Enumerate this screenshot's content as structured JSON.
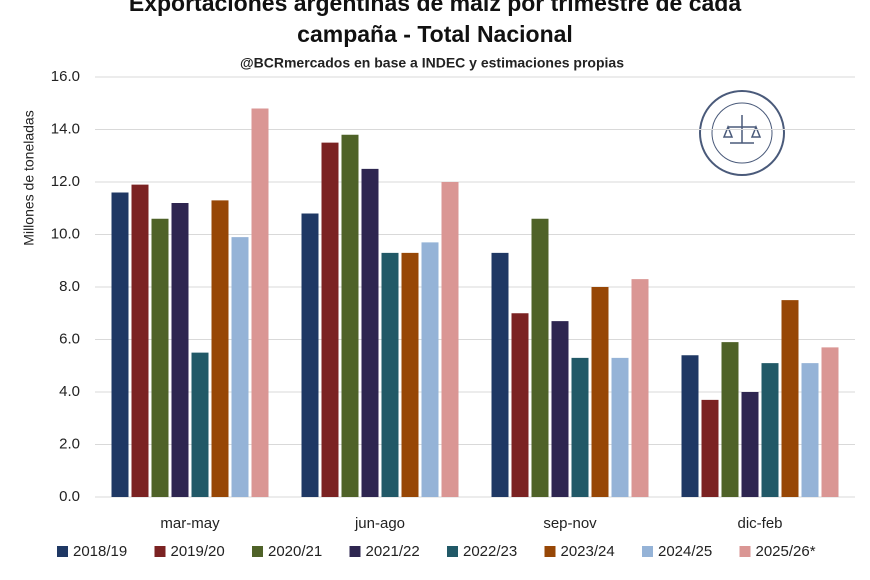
{
  "chart_data": {
    "type": "bar",
    "title": "Exportaciones argentinas de maíz por trimestre de cada campaña - Total Nacional",
    "subtitle": "@BCRmercados  en base a INDEC y estimaciones propias",
    "y_label": "Millones de toneladas",
    "categories": [
      "mar-may",
      "jun-ago",
      "sep-nov",
      "dic-feb"
    ],
    "series": [
      {
        "name": "2018/19",
        "color": "#1f3864",
        "values": [
          11.6,
          10.8,
          9.3,
          5.4
        ]
      },
      {
        "name": "2019/20",
        "color": "#7b2222",
        "values": [
          11.9,
          13.5,
          7.0,
          3.7
        ]
      },
      {
        "name": "2020/21",
        "color": "#4f6228",
        "values": [
          10.6,
          13.8,
          10.6,
          5.9
        ]
      },
      {
        "name": "2021/22",
        "color": "#2e2650",
        "values": [
          11.2,
          12.5,
          6.7,
          4.0
        ]
      },
      {
        "name": "2022/23",
        "color": "#215967",
        "values": [
          5.5,
          9.3,
          5.3,
          5.1
        ]
      },
      {
        "name": "2023/24",
        "color": "#974706",
        "values": [
          11.3,
          9.3,
          8.0,
          7.5
        ]
      },
      {
        "name": "2024/25",
        "color": "#95b3d7",
        "values": [
          9.9,
          9.7,
          5.3,
          5.1
        ]
      },
      {
        "name": "2025/26*",
        "color": "#da9694",
        "values": [
          14.8,
          12.0,
          8.3,
          5.7
        ]
      }
    ],
    "ylim": [
      0,
      16
    ],
    "yticks": [
      {
        "value": 0,
        "label": "0.0"
      },
      {
        "value": 2,
        "label": "2.0"
      },
      {
        "value": 4,
        "label": "4.0"
      },
      {
        "value": 6,
        "label": "6.0"
      },
      {
        "value": 8,
        "label": "8.0"
      },
      {
        "value": 10,
        "label": "10.0"
      },
      {
        "value": 12,
        "label": "12.0"
      },
      {
        "value": 14,
        "label": "14.0"
      },
      {
        "value": 16,
        "label": "16.0"
      }
    ],
    "grid": true
  }
}
